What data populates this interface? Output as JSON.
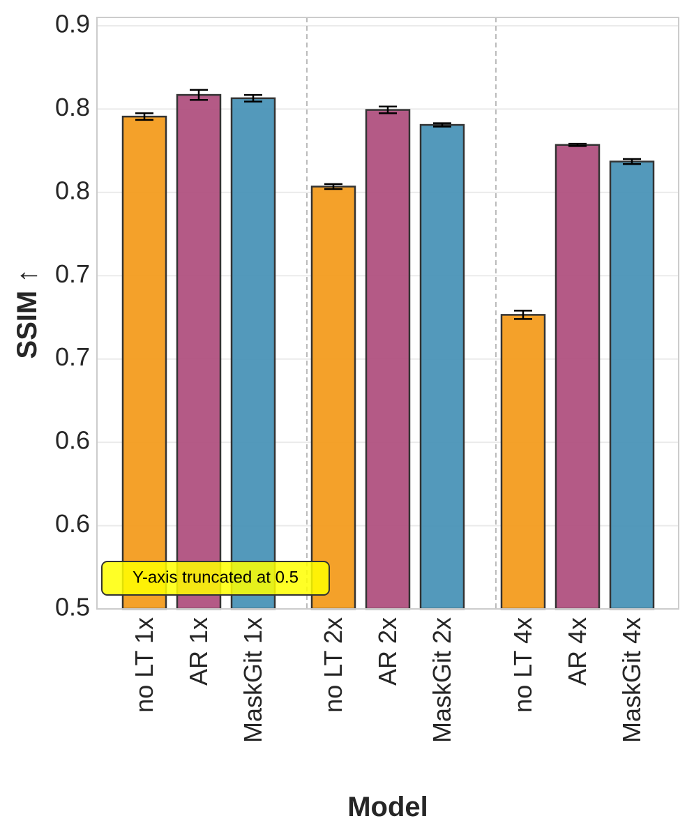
{
  "chart_data": {
    "type": "bar",
    "title": "",
    "xlabel": "Model",
    "ylabel": "SSIM ↑",
    "ylim": [
      0.5,
      0.855
    ],
    "y_tick_values": [
      0.5,
      0.55,
      0.6,
      0.65,
      0.7,
      0.75,
      0.8,
      0.85
    ],
    "y_tick_labels": [
      "0.5",
      "0.6",
      "0.6",
      "0.7",
      "0.7",
      "0.8",
      "0.8",
      "0.9"
    ],
    "grid": true,
    "categories": [
      "no LT 1x",
      "AR 1x",
      "MaskGit 1x",
      "no LT 2x",
      "AR 2x",
      "MaskGit 2x",
      "no LT 4x",
      "AR 4x",
      "MaskGit 4x"
    ],
    "groups": [
      {
        "name": "1x",
        "members": [
          "no LT 1x",
          "AR 1x",
          "MaskGit 1x"
        ]
      },
      {
        "name": "2x",
        "members": [
          "no LT 2x",
          "AR 2x",
          "MaskGit 2x"
        ]
      },
      {
        "name": "4x",
        "members": [
          "no LT 4x",
          "AR 4x",
          "MaskGit 4x"
        ]
      }
    ],
    "series_colors": {
      "no LT": "#F39C1F",
      "AR": "#B0517F",
      "MaskGit": "#4A93B7"
    },
    "bars": [
      {
        "label": "no LT 1x",
        "series": "no LT",
        "value": 0.7955,
        "error": 0.002
      },
      {
        "label": "AR 1x",
        "series": "AR",
        "value": 0.8085,
        "error": 0.003
      },
      {
        "label": "MaskGit 1x",
        "series": "MaskGit",
        "value": 0.8065,
        "error": 0.002
      },
      {
        "label": "no LT 2x",
        "series": "no LT",
        "value": 0.7535,
        "error": 0.0015
      },
      {
        "label": "AR 2x",
        "series": "AR",
        "value": 0.7995,
        "error": 0.002
      },
      {
        "label": "MaskGit 2x",
        "series": "MaskGit",
        "value": 0.7905,
        "error": 0.001
      },
      {
        "label": "no LT 4x",
        "series": "no LT",
        "value": 0.6765,
        "error": 0.0025
      },
      {
        "label": "AR 4x",
        "series": "AR",
        "value": 0.7785,
        "error": 0.0007
      },
      {
        "label": "MaskGit 4x",
        "series": "MaskGit",
        "value": 0.7685,
        "error": 0.0015
      }
    ],
    "annotation": "Y-axis truncated at 0.5",
    "annotation_colors": {
      "fill": "#FFFF00",
      "stroke": "#333333"
    },
    "frame_color": "#CCCCCC",
    "grid_color": "#EBEBEB",
    "separator_color": "#BBBBBB",
    "bar_edge_color": "#333333"
  }
}
